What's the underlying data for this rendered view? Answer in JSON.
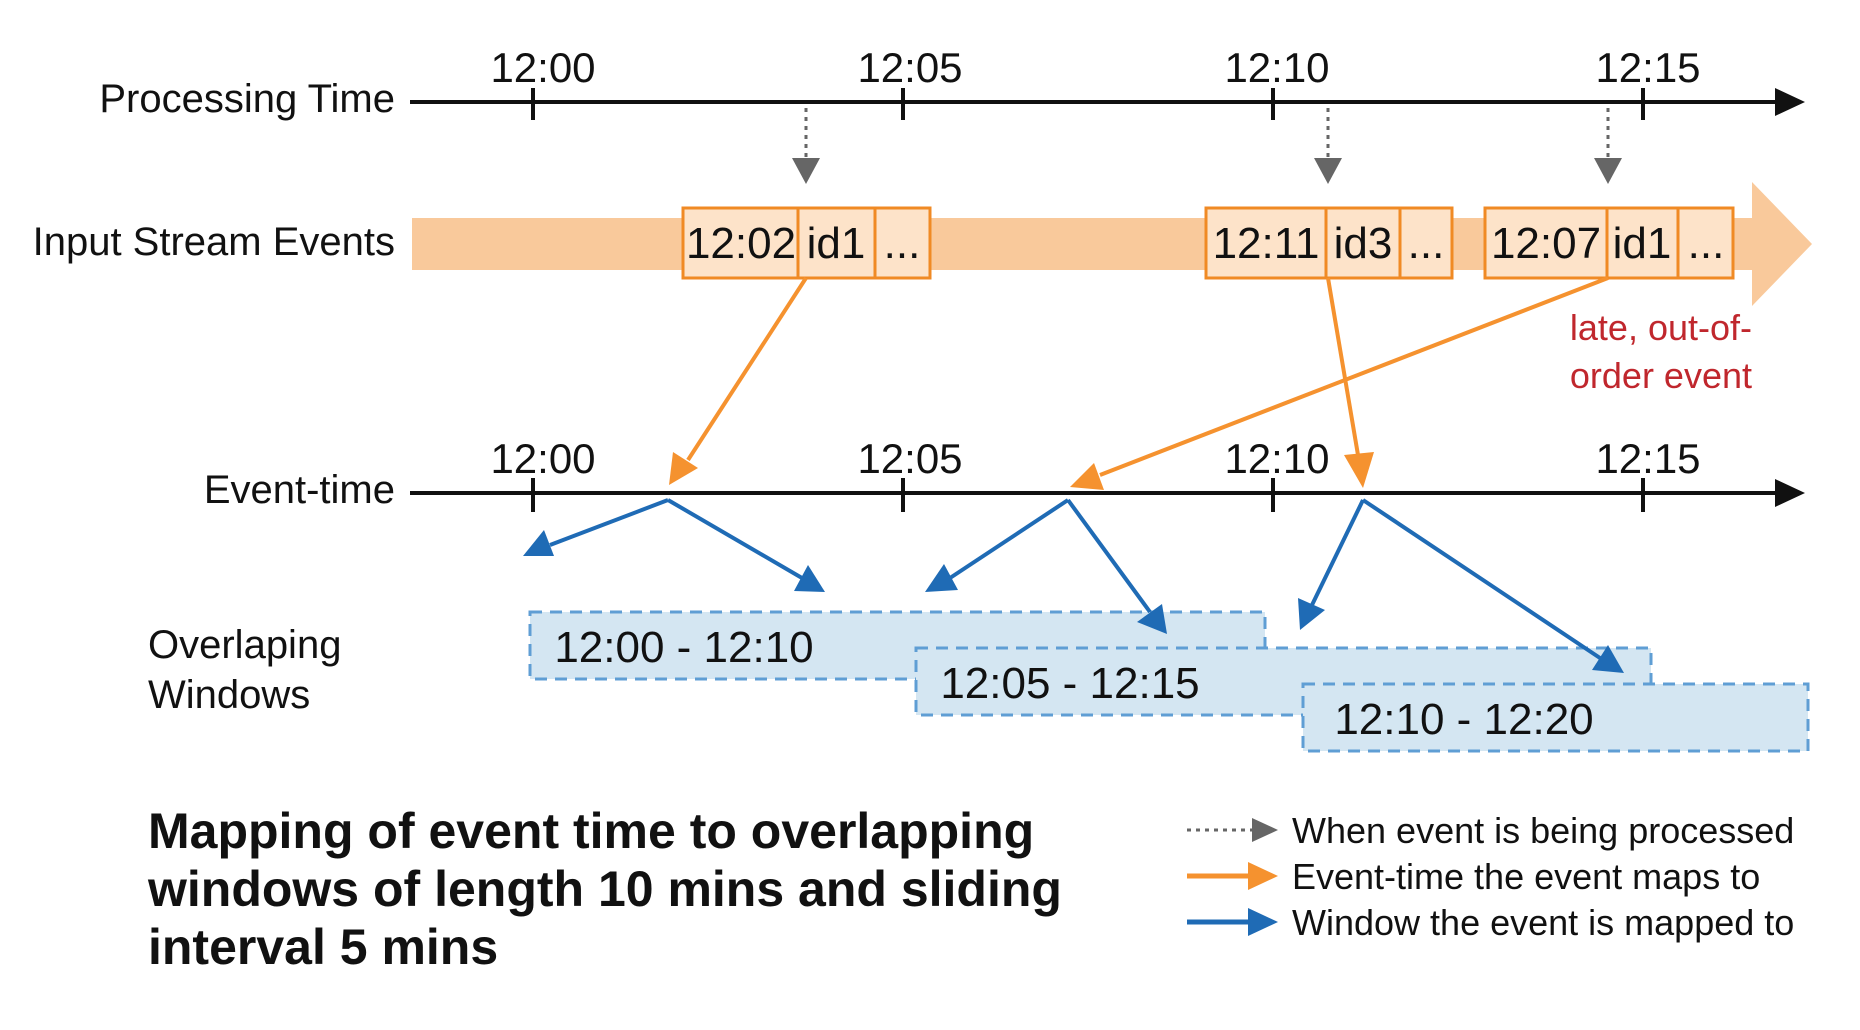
{
  "rows": {
    "processing_time": "Processing Time",
    "input_stream": "Input Stream Events",
    "event_time": "Event-time",
    "windows_line1": "Overlaping",
    "windows_line2": "Windows"
  },
  "processing_ticks": [
    "12:00",
    "12:05",
    "12:10",
    "12:15"
  ],
  "event_ticks": [
    "12:00",
    "12:05",
    "12:10",
    "12:15"
  ],
  "events": [
    {
      "time": "12:02",
      "id": "id1",
      "more": "..."
    },
    {
      "time": "12:11",
      "id": "id3",
      "more": "..."
    },
    {
      "time": "12:07",
      "id": "id1",
      "more": "..."
    }
  ],
  "late_note": [
    "late, out-of-",
    "order event"
  ],
  "windows": [
    "12:00 - 12:10",
    "12:05 - 12:15",
    "12:10 - 12:20"
  ],
  "caption": [
    "Mapping of event time to overlapping",
    "windows of length 10 mins and sliding",
    "interval 5 mins"
  ],
  "legend": [
    {
      "style": "dotted-gray",
      "label": "When event is being processed"
    },
    {
      "style": "orange",
      "label": "Event-time the event maps to"
    },
    {
      "style": "blue",
      "label": "Window the event is mapped to"
    }
  ],
  "colors": {
    "axis": "#111111",
    "stream_band": "#f9c99b",
    "event_box_fill": "#fde3c9",
    "event_box_border": "#f08a24",
    "orange_arrow": "#f5922f",
    "blue_arrow": "#1f6bb5",
    "window_fill": "#d4e6f2",
    "window_border": "#5f9ed4",
    "dotted_arrow": "#666666",
    "late_text": "#c0272d"
  }
}
